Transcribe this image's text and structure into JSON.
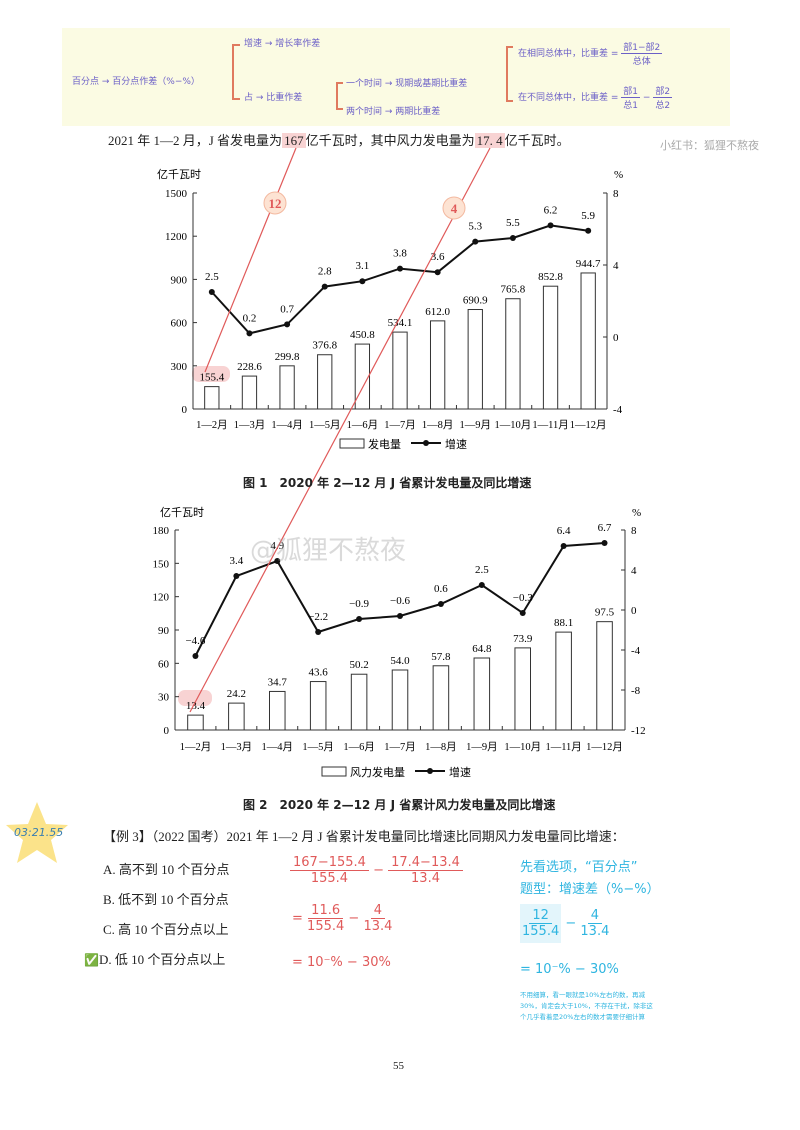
{
  "note": {
    "root": "百分点 → 百分点作差（%−%）",
    "branch_growth": "增速 → 增长率作差",
    "branch_share": "占 → 比重作差",
    "one_period": "一个时间 → 现期或基期比重差",
    "two_periods": "两个时间 → 两期比重差",
    "same_total": "在相同总体中，比重差 =",
    "same_total_num": "部1−部2",
    "same_total_den": "总体",
    "diff_total": "在不同总体中，比重差 =",
    "diff_total_n1": "部1",
    "diff_total_d1": "总1",
    "diff_total_n2": "部2",
    "diff_total_d2": "总2",
    "minus": "−"
  },
  "intro": {
    "part1": "2021 年 1—2 月，J 省发电量为",
    "value1": "167",
    "part2": "亿千瓦时，其中风力发电量为",
    "value2": "17. 4",
    "part3": "亿千瓦时。"
  },
  "watermark_side": "小红书：狐狸不熬夜",
  "watermark_center": "@狐狸不熬夜",
  "annotations": {
    "circle1": "12",
    "circle2": "4"
  },
  "chart_data": [
    {
      "type": "bar",
      "title": "图 1　2020 年 2—12 月 J 省累计发电量及同比增速",
      "ylabel": "亿千瓦时",
      "y2label": "%",
      "categories": [
        "1—2月",
        "1—3月",
        "1—4月",
        "1—5月",
        "1—6月",
        "1—7月",
        "1—8月",
        "1—9月",
        "1—10月",
        "1—11月",
        "1—12月"
      ],
      "ylim": [
        0,
        1500
      ],
      "yticks": [
        0,
        300,
        600,
        900,
        1200,
        1500
      ],
      "y2lim": [
        -4,
        8
      ],
      "y2ticks": [
        -4,
        0,
        4,
        8
      ],
      "grid": false,
      "legend_position": "bottom",
      "series": [
        {
          "name": "发电量",
          "type": "bar",
          "axis": "left",
          "values": [
            155.4,
            228.6,
            299.8,
            376.8,
            450.8,
            534.1,
            612.0,
            690.9,
            765.8,
            852.8,
            944.7
          ],
          "labels": [
            "155.4",
            "228.6",
            "299.8",
            "376.8",
            "450.8",
            "534.1",
            "612.0",
            "690.9",
            "765.8",
            "852.8",
            "944.7"
          ]
        },
        {
          "name": "增速",
          "type": "line",
          "axis": "right",
          "values": [
            2.5,
            0.2,
            0.7,
            2.8,
            3.1,
            3.8,
            3.6,
            5.3,
            5.5,
            6.2,
            5.9
          ],
          "labels": [
            "2.5",
            "0.2",
            "0.7",
            "2.8",
            "3.1",
            "3.8",
            "3.6",
            "5.3",
            "5.5",
            "6.2",
            "5.9"
          ]
        }
      ]
    },
    {
      "type": "bar",
      "title": "图 2　2020 年 2—12 月 J 省累计风力发电量及同比增速",
      "ylabel": "亿千瓦时",
      "y2label": "%",
      "categories": [
        "1—2月",
        "1—3月",
        "1—4月",
        "1—5月",
        "1—6月",
        "1—7月",
        "1—8月",
        "1—9月",
        "1—10月",
        "1—11月",
        "1—12月"
      ],
      "ylim": [
        0,
        180
      ],
      "yticks": [
        0,
        30,
        60,
        90,
        120,
        150,
        180
      ],
      "y2lim": [
        -12,
        8
      ],
      "y2ticks": [
        -12,
        -8,
        -4,
        0,
        4,
        8
      ],
      "grid": false,
      "legend_position": "bottom",
      "series": [
        {
          "name": "风力发电量",
          "type": "bar",
          "axis": "left",
          "values": [
            13.4,
            24.2,
            34.7,
            43.6,
            50.2,
            54.0,
            57.8,
            64.8,
            73.9,
            88.1,
            97.5
          ],
          "labels": [
            "13.4",
            "24.2",
            "34.7",
            "43.6",
            "50.2",
            "54.0",
            "57.8",
            "64.8",
            "73.9",
            "88.1",
            "97.5"
          ]
        },
        {
          "name": "增速",
          "type": "line",
          "axis": "right",
          "values": [
            -4.6,
            3.4,
            4.9,
            -2.2,
            -0.9,
            -0.6,
            0.6,
            2.5,
            -0.3,
            6.4,
            6.7
          ],
          "labels": [
            "−4.6",
            "3.4",
            "4.9",
            "−2.2",
            "−0.9",
            "−0.6",
            "0.6",
            "2.5",
            "−0.3",
            "6.4",
            "6.7"
          ]
        }
      ]
    }
  ],
  "timestamp": "03:21.55",
  "question": {
    "stem": "【例 3】（2022 国考）2021 年 1—2 月 J 省累计发电量同比增速比同期风力发电量同比增速：",
    "options": [
      "A. 高不到 10 个百分点",
      "B. 低不到 10 个百分点",
      "C. 高 10 个百分点以上",
      "D. 低 10 个百分点以上"
    ],
    "correct_mark": "✅"
  },
  "red_work": {
    "f1n": "167−155.4",
    "f1d": "155.4",
    "f2n": "17.4−13.4",
    "f2d": "13.4",
    "eq": "=",
    "minus": "−",
    "g1n": "11.6",
    "g1d": "155.4",
    "g2n": "4",
    "g2d": "13.4",
    "result": "= 10⁻% − 30%"
  },
  "blue_work": {
    "line1": "先看选项，“百分点”",
    "line2": "题型：增速差（%−%）",
    "f1n": "12",
    "f1d": "155.4",
    "minus": "−",
    "f2n": "4",
    "f2d": "13.4",
    "result": "= 10⁻% − 30%",
    "note": [
      "不用细算，看一眼就是10%左右的数，再减",
      "30%，肯定会大于10%，不存在干扰，除非这",
      "个几乎看着是20%左右的数才需要仔细计算"
    ]
  },
  "page_number": "55",
  "colors": {
    "red": "#e05a5a",
    "blue": "#2fb5e0",
    "note_bg": "#fbfbe3",
    "star": "#fbe38a"
  }
}
